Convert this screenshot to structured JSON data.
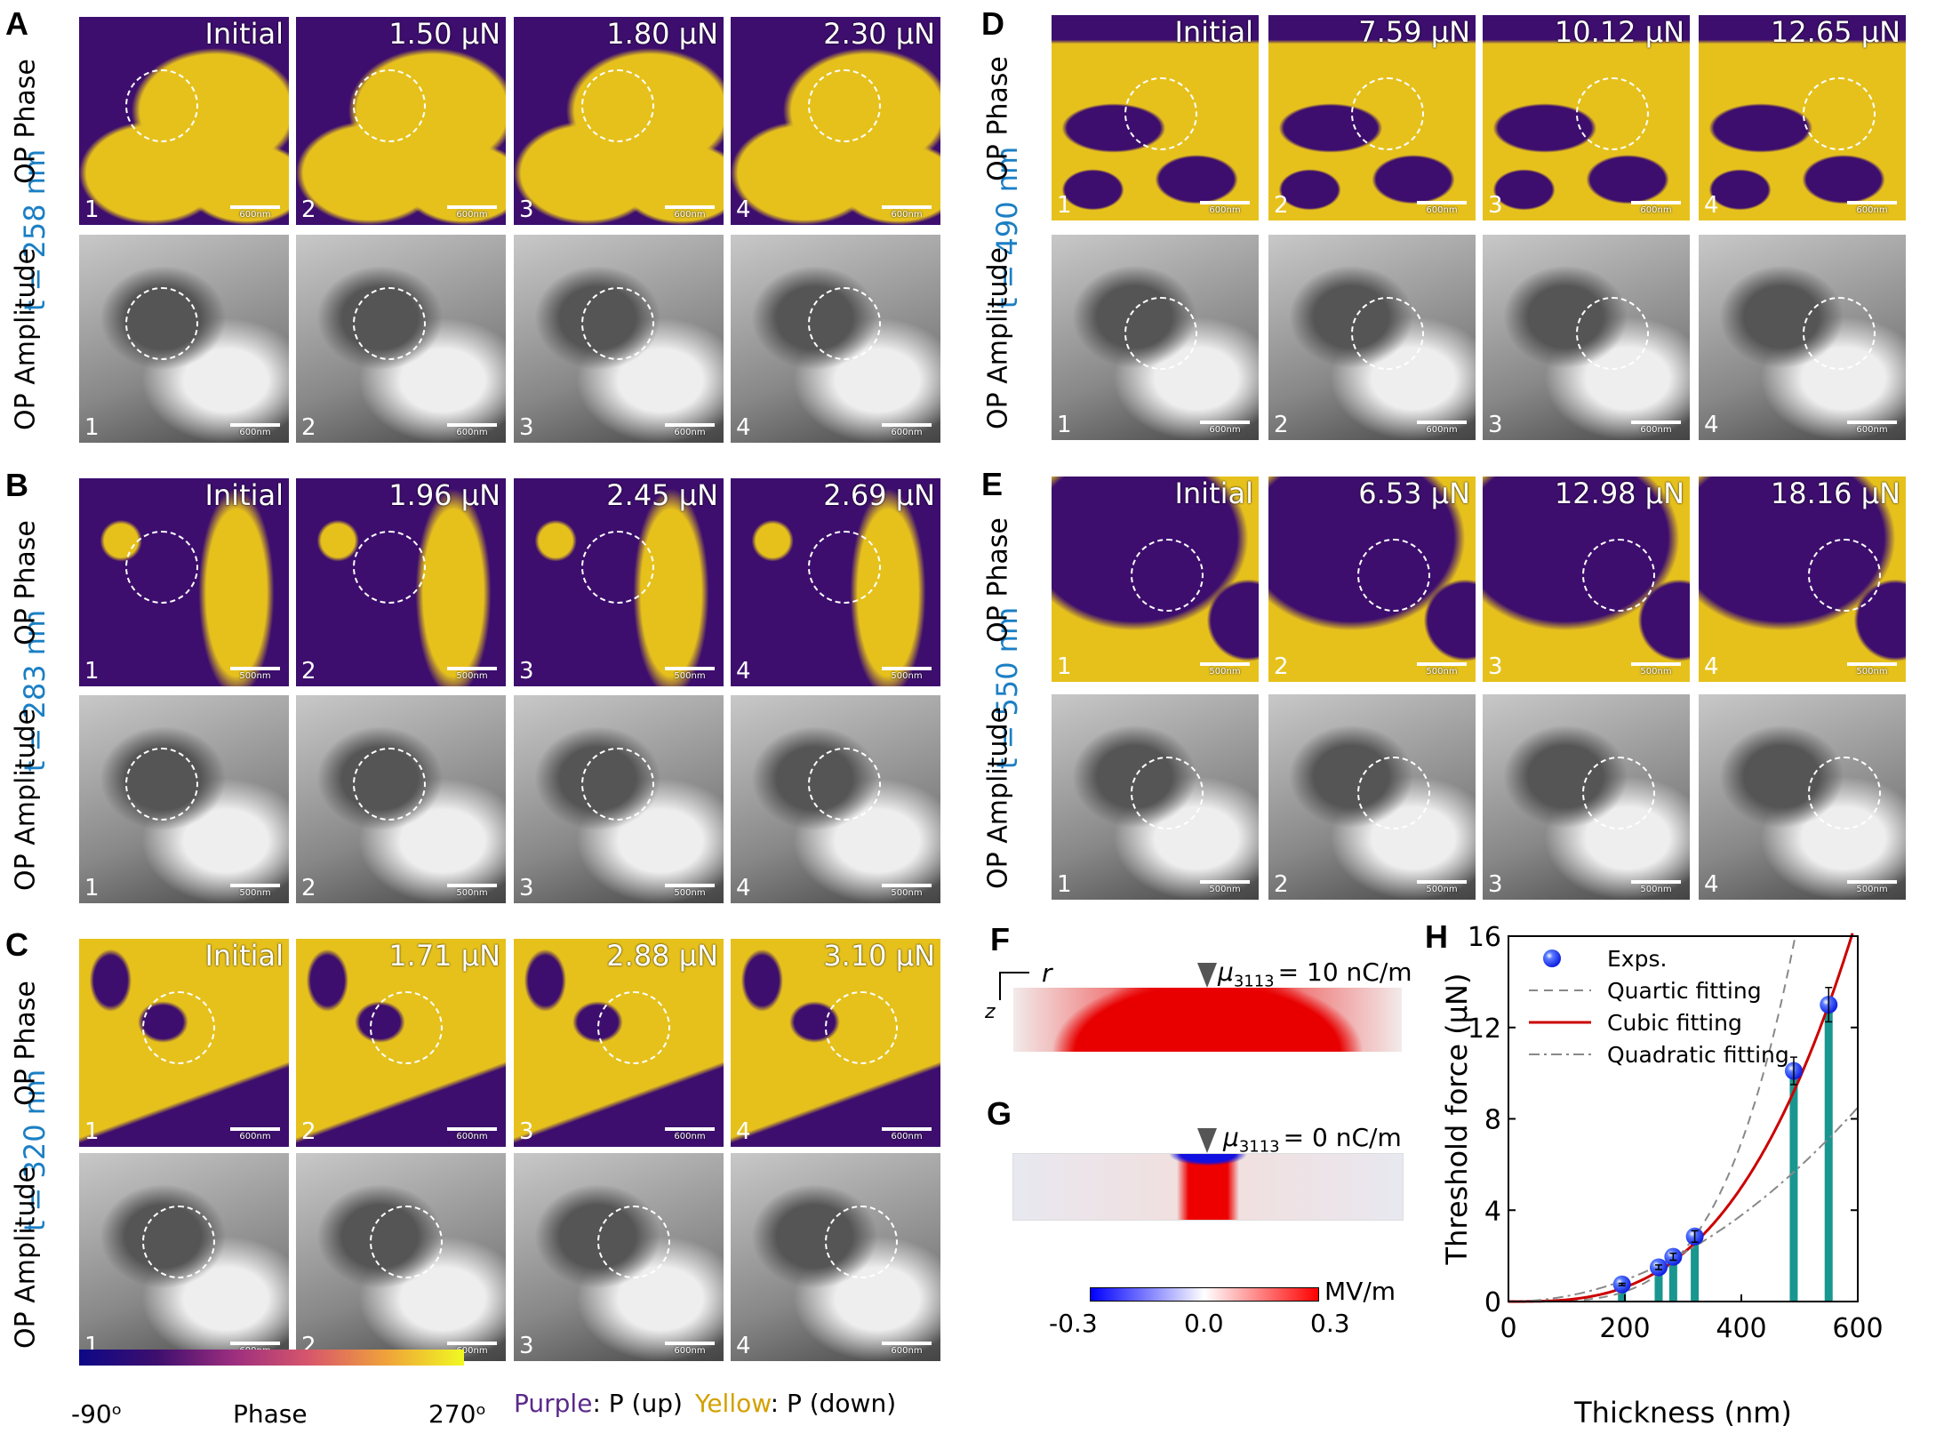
{
  "row_labels": {
    "phase": "OP Phase",
    "amplitude": "OP Amplitude"
  },
  "panels": [
    {
      "letter": "A",
      "thickness": "t = 258 nm",
      "scale_bar": "600nm",
      "forces": [
        "Initial",
        "1.50 μN",
        "1.80 μN",
        "2.30 μN"
      ]
    },
    {
      "letter": "B",
      "thickness": "t = 283 nm",
      "scale_bar": "500nm",
      "forces": [
        "Initial",
        "1.96 μN",
        "2.45 μN",
        "2.69 μN"
      ]
    },
    {
      "letter": "C",
      "thickness": "t = 320 nm",
      "scale_bar": "600nm",
      "forces": [
        "Initial",
        "1.71 μN",
        "2.88 μN",
        "3.10 μN"
      ]
    },
    {
      "letter": "D",
      "thickness": "t = 490 nm",
      "scale_bar": "600nm",
      "forces": [
        "Initial",
        "7.59 μN",
        "10.12 μN",
        "12.65 μN"
      ]
    },
    {
      "letter": "E",
      "thickness": "t = 550 nm",
      "scale_bar": "500nm",
      "forces": [
        "Initial",
        "6.53 μN",
        "12.98 μN",
        "18.16 μN"
      ]
    }
  ],
  "tile_numbers": [
    "1",
    "2",
    "3",
    "4"
  ],
  "phase_colorbar": {
    "min": "-90ᵒ",
    "label": "Phase",
    "max": "270ᵒ",
    "colors": [
      "#0d0887",
      "#3d0e6e",
      "#9c2e7f",
      "#d8576b",
      "#f0a33a",
      "#f0f921"
    ]
  },
  "legend_text": {
    "purple": "Purple",
    "purple_desc": ": P (up)",
    "yellow": "Yellow",
    "yellow_desc": ": P (down)",
    "purple_color": "#5a2a8a",
    "yellow_color": "#d4a100"
  },
  "sim": {
    "F": {
      "letter": "F",
      "label": "μ3113 = 10 nC/m",
      "mu": "μ",
      "sub": "3113",
      "rest": "= 10 nC/m",
      "axis_r": "r",
      "axis_z": "z"
    },
    "G": {
      "letter": "G",
      "label": "μ3113 = 0 nC/m",
      "mu": "μ",
      "sub": "3113",
      "rest": "= 0 nC/m"
    },
    "colorbar": {
      "unit": "MV/m",
      "min": "-0.3",
      "mid": "0.0",
      "max": "0.3"
    }
  },
  "chart_data": {
    "type": "scatter",
    "letter": "H",
    "xlabel": "Thickness (nm)",
    "ylabel": "Threshold force (μN)",
    "xlim": [
      0,
      600
    ],
    "ylim": [
      0,
      16
    ],
    "xticks": [
      "0",
      "200",
      "400",
      "600"
    ],
    "yticks": [
      "0",
      "4",
      "8",
      "12",
      "16"
    ],
    "legend_position": "top-left",
    "series": [
      {
        "name": "Exps.",
        "type": "scatter+bar",
        "x": [
          195,
          258,
          283,
          320,
          490,
          550
        ],
        "y": [
          0.75,
          1.5,
          1.96,
          2.85,
          10.1,
          13.0
        ],
        "err": [
          0.05,
          0.1,
          0.15,
          0.25,
          0.6,
          0.75
        ],
        "color": "#1f3cff",
        "bar_color": "#1a9690"
      },
      {
        "name": "Quartic fitting",
        "type": "line",
        "style": "dashed",
        "power": 4,
        "color": "#888888"
      },
      {
        "name": "Cubic fitting",
        "type": "line",
        "style": "solid",
        "power": 3,
        "color": "#cc0000"
      },
      {
        "name": "Quadratic fitting",
        "type": "line",
        "style": "dashdot",
        "power": 2,
        "color": "#888888"
      }
    ]
  }
}
